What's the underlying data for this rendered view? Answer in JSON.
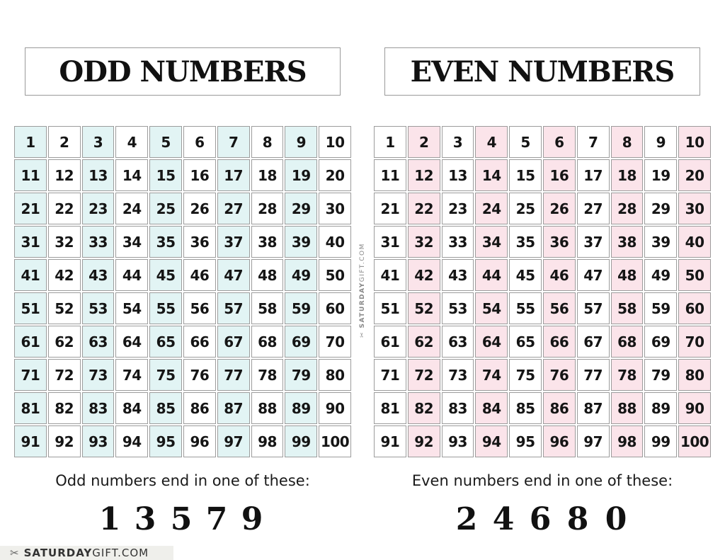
{
  "odd": {
    "title": "ODD NUMBERS",
    "caption": "Odd numbers end in one of these:",
    "digits": [
      "1",
      "3",
      "5",
      "7",
      "9"
    ],
    "highlight_color": "#e2f4f4"
  },
  "even": {
    "title": "EVEN NUMBERS",
    "caption": "Even numbers end in one of these:",
    "digits": [
      "2",
      "4",
      "6",
      "8",
      "0"
    ],
    "highlight_color": "#fbe4ea"
  },
  "numbers": [
    "1",
    "2",
    "3",
    "4",
    "5",
    "6",
    "7",
    "8",
    "9",
    "10",
    "11",
    "12",
    "13",
    "14",
    "15",
    "16",
    "17",
    "18",
    "19",
    "20",
    "21",
    "22",
    "23",
    "24",
    "25",
    "26",
    "27",
    "28",
    "29",
    "30",
    "31",
    "32",
    "33",
    "34",
    "35",
    "36",
    "37",
    "38",
    "39",
    "40",
    "41",
    "42",
    "43",
    "44",
    "45",
    "46",
    "47",
    "48",
    "49",
    "50",
    "51",
    "52",
    "53",
    "54",
    "55",
    "56",
    "57",
    "58",
    "59",
    "60",
    "61",
    "62",
    "63",
    "64",
    "65",
    "66",
    "67",
    "68",
    "69",
    "70",
    "71",
    "72",
    "73",
    "74",
    "75",
    "76",
    "77",
    "78",
    "79",
    "80",
    "81",
    "82",
    "83",
    "84",
    "85",
    "86",
    "87",
    "88",
    "89",
    "90",
    "91",
    "92",
    "93",
    "94",
    "95",
    "96",
    "97",
    "98",
    "99",
    "100"
  ],
  "watermark": {
    "bold": "SATURDAY",
    "rest": "GIFT.COM",
    "icon": "scissors-bow-icon"
  }
}
